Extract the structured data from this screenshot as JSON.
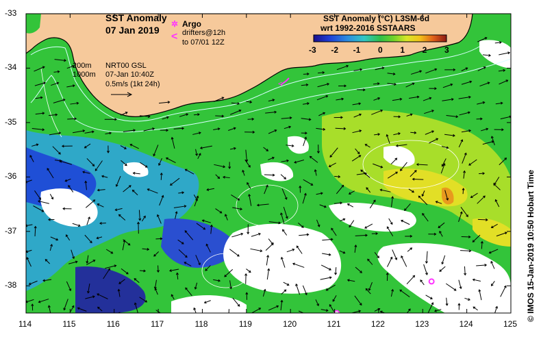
{
  "title": {
    "line1": "SST Anomaly",
    "line2": "07 Jan 2019"
  },
  "legend": {
    "argo_label": "Argo",
    "drifters_label": "drifters@12h",
    "drifters_sub": "to 07/01 12Z"
  },
  "info": {
    "contour_200": "200m",
    "contour_1000": "1000m",
    "source": "NRT00 GSL",
    "time": "07-Jan 10:40Z",
    "scale": "0.5m/s (1kt 24h)"
  },
  "colorbar": {
    "title_line1": "SST Anomaly (°C) L3SM-6d",
    "title_line2": "wrt 1992-2016 SSTAARS",
    "ticks": [
      "-3",
      "-2",
      "-1",
      "0",
      "1",
      "2",
      "3"
    ],
    "min": -3,
    "max": 3,
    "colors": [
      "#1a0f8c",
      "#1f3fd6",
      "#2c8ae0",
      "#33c7c4",
      "#2fbf4a",
      "#3fcc2a",
      "#c8e628",
      "#f2d21a",
      "#e8871a",
      "#c8281a",
      "#8c1a14"
    ]
  },
  "map": {
    "x_ticks": [
      "114",
      "115",
      "116",
      "117",
      "118",
      "119",
      "120",
      "121",
      "122",
      "123",
      "124",
      "125"
    ],
    "y_ticks": [
      "-33",
      "-34",
      "-35",
      "-36",
      "-37",
      "-38"
    ],
    "lon_range": [
      114,
      125
    ],
    "lat_range": [
      -38.5,
      -33
    ],
    "land_color": "#f6c99b",
    "argo_color": "#ff33ff",
    "argo_floats": [
      {
        "lon": 123.2,
        "lat": -37.92
      },
      {
        "lon": 121.05,
        "lat": -38.5
      }
    ],
    "drifter_tracks": [
      {
        "lon": 119.8,
        "lat": -34.35
      }
    ]
  },
  "credit": "IMOS 15-Jan-2019 10:50 Hobart Time",
  "copyright_symbol": "©"
}
